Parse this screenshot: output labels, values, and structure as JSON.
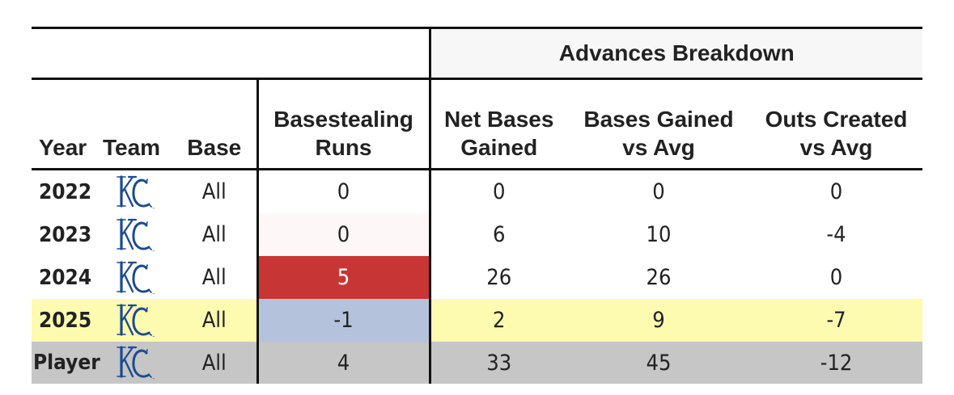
{
  "header": {
    "group_label": "Advances Breakdown",
    "columns": {
      "year": "Year",
      "team": "Team",
      "base": "Base",
      "bsr": [
        "Basestealing",
        "Runs"
      ],
      "net": [
        "Net Bases",
        "Gained"
      ],
      "bases_gained": [
        "Bases Gained",
        "vs Avg"
      ],
      "outs_created": [
        "Outs Created",
        "vs Avg"
      ]
    }
  },
  "team_logo_icon": "kc-royals-logo-icon",
  "colors": {
    "heat_high": "#c73535",
    "heat_low": "#b5c2dc",
    "heat_near_zero": "#fdf7f7",
    "row_highlight": "#fcfbb0",
    "row_total": "#c6c6c6",
    "logo_blue": "#1c4b8f"
  },
  "rows": [
    {
      "year": "2022",
      "base": "All",
      "bsr": "0",
      "net": "0",
      "bases_gained": "0",
      "outs_created": "0"
    },
    {
      "year": "2023",
      "base": "All",
      "bsr": "0",
      "net": "6",
      "bases_gained": "10",
      "outs_created": "-4"
    },
    {
      "year": "2024",
      "base": "All",
      "bsr": "5",
      "net": "26",
      "bases_gained": "26",
      "outs_created": "0"
    },
    {
      "year": "2025",
      "base": "All",
      "bsr": "-1",
      "net": "2",
      "bases_gained": "9",
      "outs_created": "-7"
    },
    {
      "year": "Player",
      "base": "All",
      "bsr": "4",
      "net": "33",
      "bases_gained": "45",
      "outs_created": "-12"
    }
  ]
}
